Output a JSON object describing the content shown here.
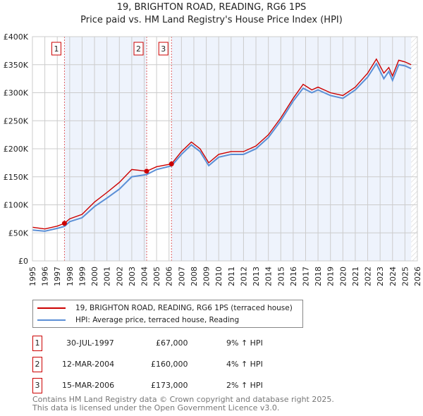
{
  "chart_data": {
    "type": "line",
    "title": "19, BRIGHTON ROAD, READING, RG6 1PS",
    "subtitle": "Price paid vs. HM Land Registry's House Price Index (HPI)",
    "xlim": [
      1995,
      2026
    ],
    "ylim": [
      0,
      400000
    ],
    "x_ticks": [
      "1995",
      "1996",
      "1997",
      "1998",
      "1999",
      "2000",
      "2001",
      "2002",
      "2003",
      "2004",
      "2005",
      "2006",
      "2007",
      "2008",
      "2009",
      "2010",
      "2011",
      "2012",
      "2013",
      "2014",
      "2015",
      "2016",
      "2017",
      "2018",
      "2019",
      "2020",
      "2021",
      "2022",
      "2023",
      "2024",
      "2025",
      "2026"
    ],
    "y_ticks": [
      {
        "v": 0,
        "l": "£0"
      },
      {
        "v": 50000,
        "l": "£50K"
      },
      {
        "v": 100000,
        "l": "£100K"
      },
      {
        "v": 150000,
        "l": "£150K"
      },
      {
        "v": 200000,
        "l": "£200K"
      },
      {
        "v": 250000,
        "l": "£250K"
      },
      {
        "v": 300000,
        "l": "£300K"
      },
      {
        "v": 350000,
        "l": "£350K"
      },
      {
        "v": 400000,
        "l": "£400K"
      }
    ],
    "x": [
      1995,
      1996,
      1997,
      1997.58,
      1998,
      1999,
      2000,
      2001,
      2002,
      2003,
      2004.2,
      2005,
      2006.2,
      2007,
      2007.8,
      2008.5,
      2009.2,
      2010,
      2011,
      2012,
      2013,
      2014,
      2015,
      2016,
      2016.8,
      2017.5,
      2018,
      2019,
      2020,
      2021,
      2022,
      2022.7,
      2023.3,
      2023.7,
      2024,
      2024.5,
      2025,
      2025.5
    ],
    "series": [
      {
        "name": "19, BRIGHTON ROAD, READING, RG6 1PS (terraced house)",
        "color": "#cc0000",
        "values": [
          60000,
          57000,
          62000,
          67000,
          75000,
          83000,
          105000,
          122000,
          140000,
          163000,
          160000,
          168000,
          173000,
          195000,
          212000,
          200000,
          175000,
          190000,
          195000,
          195000,
          205000,
          225000,
          255000,
          290000,
          315000,
          305000,
          310000,
          300000,
          295000,
          310000,
          335000,
          360000,
          335000,
          345000,
          330000,
          358000,
          355000,
          350000
        ]
      },
      {
        "name": "HPI: Average price, terraced house, Reading",
        "color": "#5b8fd6",
        "values": [
          55000,
          53000,
          58000,
          61500,
          70000,
          77000,
          97000,
          112000,
          128000,
          150000,
          154000,
          163000,
          169500,
          190000,
          207000,
          195000,
          170000,
          185000,
          190000,
          190000,
          200000,
          220000,
          250000,
          285000,
          308000,
          300000,
          305000,
          295000,
          290000,
          305000,
          328000,
          352000,
          325000,
          338000,
          322000,
          350000,
          348000,
          343000
        ]
      }
    ],
    "sales": [
      {
        "n": "1",
        "x": 1997.58,
        "price": 67000
      },
      {
        "n": "2",
        "x": 2004.2,
        "price": 160000
      },
      {
        "n": "3",
        "x": 2006.2,
        "price": 173000
      }
    ],
    "hatch_from": 2025.5
  },
  "legend": {
    "red": "19, BRIGHTON ROAD, READING, RG6 1PS (terraced house)",
    "blue": "HPI: Average price, terraced house, Reading"
  },
  "sales_table": [
    {
      "n": "1",
      "date": "30-JUL-1997",
      "price": "£67,000",
      "hpi": "9% ↑ HPI"
    },
    {
      "n": "2",
      "date": "12-MAR-2004",
      "price": "£160,000",
      "hpi": "4% ↑ HPI"
    },
    {
      "n": "3",
      "date": "15-MAR-2006",
      "price": "£173,000",
      "hpi": "2% ↑ HPI"
    }
  ],
  "footer": {
    "line1": "Contains HM Land Registry data © Crown copyright and database right 2025.",
    "line2": "This data is licensed under the Open Government Licence v3.0."
  }
}
